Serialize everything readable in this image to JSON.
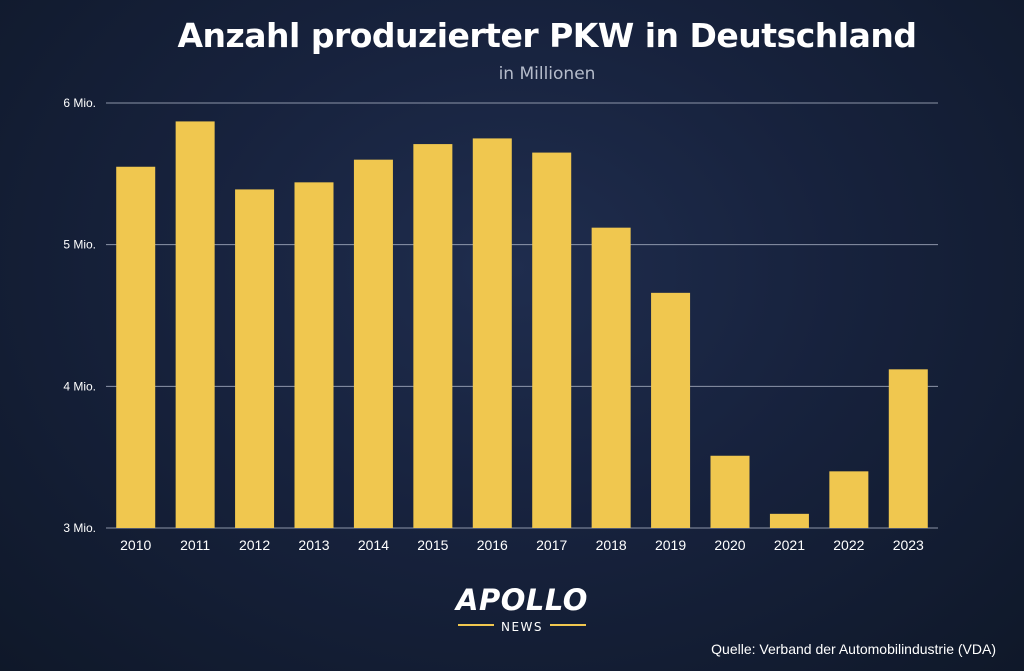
{
  "colors": {
    "bar": "#f0c74f",
    "grid": "#aab2c4",
    "text": "#ffffff",
    "subtitle": "#b5bccb"
  },
  "chart_data": {
    "type": "bar",
    "title": "Anzahl produzierter PKW in Deutschland",
    "subtitle": "in Millionen",
    "xlabel": "",
    "ylabel": "",
    "categories": [
      "2010",
      "2011",
      "2012",
      "2013",
      "2014",
      "2015",
      "2016",
      "2017",
      "2018",
      "2019",
      "2020",
      "2021",
      "2022",
      "2023"
    ],
    "values": [
      5.55,
      5.87,
      5.39,
      5.44,
      5.6,
      5.71,
      5.75,
      5.65,
      5.12,
      4.66,
      3.51,
      3.1,
      3.4,
      4.12
    ],
    "ylim": [
      3,
      6
    ],
    "yticks": [
      3,
      4,
      5,
      6
    ],
    "ytick_labels": [
      "3 Mio.",
      "4 Mio.",
      "5 Mio.",
      "6 Mio."
    ],
    "grid": true,
    "legend": "none"
  },
  "logo": {
    "name": "APOLLO",
    "sub": "NEWS"
  },
  "source": "Quelle: Verband der Automobilindustrie (VDA)"
}
